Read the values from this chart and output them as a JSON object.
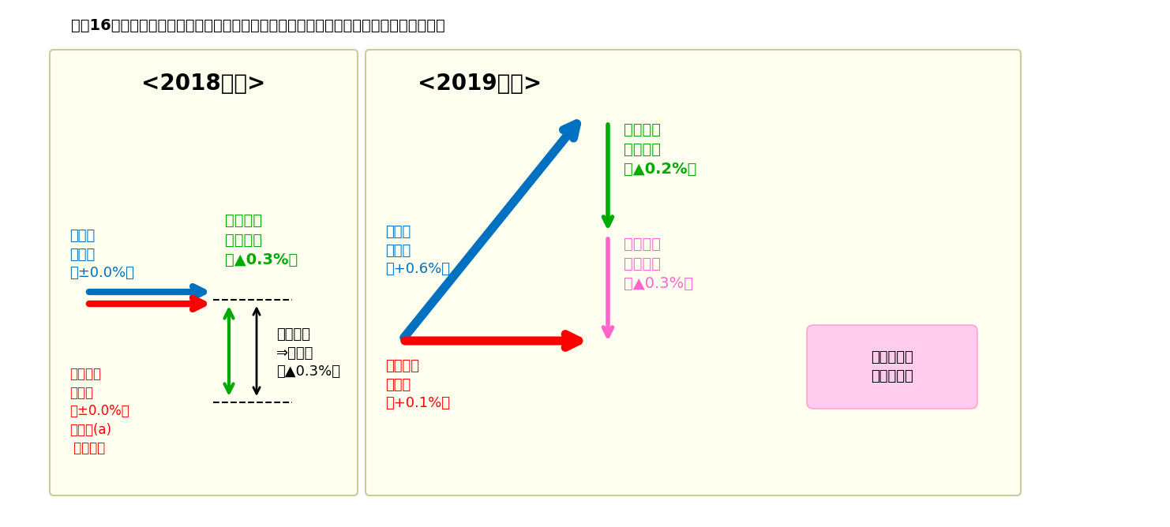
{
  "title": "図表16　年金財政健全化のための調整（いわゆるマクロ経済スライド）の適用イメージ",
  "title_fontsize": 14,
  "title_color": "#000000",
  "bg_color": "#fffff0",
  "panel_bg": "#fffff0",
  "box_bg_2018": "#fffff0",
  "box_bg_2019": "#fffff0",
  "box_edge_color": "#cccc99",
  "panel_2018_title": "<2018年度>",
  "panel_2019_title": "<2019年度>",
  "panel_title_color": "#000000",
  "panel_title_fontsize": 20,
  "blue_color": "#0070c0",
  "red_color": "#ff0000",
  "green_color": "#00b050",
  "pink_color": "#ff66cc",
  "black_color": "#000000",
  "honno_label_2018": "本則の\n改定率\n（±0.0%）",
  "choseigo_label_2018": "調整後の\n改定率\n（±0.0%）\n（特例(a)\n 適用後）",
  "tonendobun_label_2018": "当年度分\nの調整率\n（▲0.3%）",
  "michoseibun_label_2018": "未調整分\n⇒繰越し\n（▲0.3%）",
  "honno_label_2019": "本則の\n改定率\n（+0.6%）",
  "choseigo_label_2019": "調整後の\n改定率\n（+0.1%）",
  "tonendobun_label_2019": "当年度分\nの調整率\n（▲0.2%）",
  "kurikoshi_label_2019": "繰越した\n未調整分\n（▲0.3%）",
  "kanryo_label": "繰越し分の\n精算は完了"
}
